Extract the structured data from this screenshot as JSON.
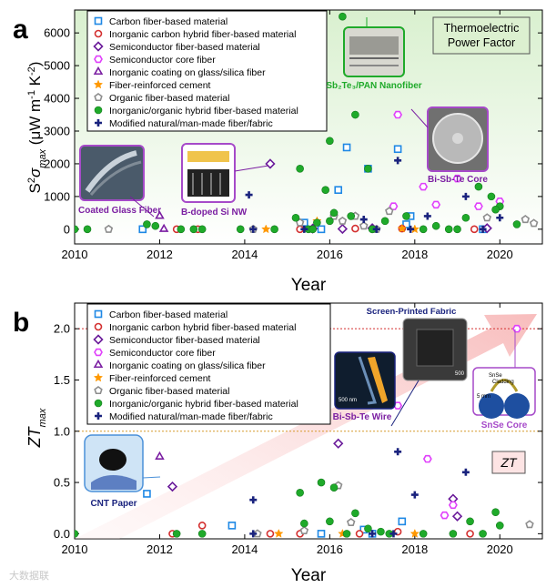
{
  "chart_data": [
    {
      "panel_label": "a",
      "type": "scatter",
      "title": "Thermoelectric Power Factor",
      "title_lines": [
        "Thermoelectric",
        "Power Factor"
      ],
      "xlabel": "Year",
      "ylabel": "S²σ_max (μW m⁻¹ K⁻²)",
      "ylabel_parts": {
        "s": "S",
        "sup": "2",
        "sigma": "σ",
        "sub": "max",
        "units": " (μW m",
        "u1": "-1",
        "mid": " K",
        "u2": "-2",
        "close": ")"
      },
      "xlim": [
        2010,
        2021
      ],
      "ylim": [
        -450,
        6700
      ],
      "xticks": [
        2010,
        2012,
        2014,
        2016,
        2018,
        2020
      ],
      "xtick_labels": [
        "2010",
        "2012",
        "2014",
        "2016",
        "2018",
        "2020"
      ],
      "yticks": [
        0,
        1000,
        2000,
        3000,
        4000,
        5000,
        6000
      ],
      "ytick_labels": [
        "0",
        "1000",
        "2000",
        "3000",
        "4000",
        "5000",
        "6000"
      ],
      "annotations": [
        {
          "text": "Coated Glass Fiber",
          "x": 2012.0,
          "y": 400
        },
        {
          "text": "B-doped Si NW",
          "x": 2014.6,
          "y": 2000
        },
        {
          "text": "Sb₂Te₃/PAN Nanofiber",
          "x": 2016.0,
          "y": 6500
        },
        {
          "text": "Bi-Sb-Te Core",
          "x": 2017.6,
          "y": 3500
        }
      ],
      "series": [
        {
          "name": "Carbon fiber-based material",
          "x": [
            2011.6,
            2016.4,
            2016.9,
            2017.6,
            2015.4,
            2015.8,
            2016.2,
            2017.8,
            2019.6,
            2017.9
          ],
          "y": [
            0,
            2500,
            1850,
            2450,
            200,
            0,
            1200,
            150,
            0,
            400
          ]
        },
        {
          "name": "Inorganic carbon hybrid fiber-based material",
          "x": [
            2012.4,
            2012.9,
            2015.3,
            2016.6,
            2017.7,
            2019.4
          ],
          "y": [
            0,
            0,
            0,
            20,
            20,
            0
          ]
        },
        {
          "name": "Semiconductor fiber-based material",
          "x": [
            2014.6,
            2015.6,
            2017.0,
            2019.7,
            2016.3
          ],
          "y": [
            2000,
            20,
            30,
            30,
            10
          ]
        },
        {
          "name": "Semiconductor core fiber",
          "x": [
            2017.6,
            2017.5,
            2018.2,
            2018.5,
            2019.0,
            2019.5,
            2020.0
          ],
          "y": [
            3500,
            700,
            1300,
            750,
            1550,
            700,
            850
          ]
        },
        {
          "name": "Inorganic coating on glass/silica fiber",
          "x": [
            2012.0,
            2012.1
          ],
          "y": [
            400,
            0
          ]
        },
        {
          "name": "Fiber-reinforced cement",
          "x": [
            2014.5,
            2015.7,
            2017.7,
            2018.0
          ],
          "y": [
            0,
            250,
            20,
            0
          ]
        },
        {
          "name": "Organic fiber-based material",
          "x": [
            2010.8,
            2014.2,
            2015.3,
            2016.1,
            2016.6,
            2016.3,
            2016.8,
            2017.1,
            2017.4,
            2019.7,
            2020.6,
            2020.8
          ],
          "y": [
            0,
            0,
            200,
            400,
            400,
            250,
            100,
            0,
            550,
            350,
            300,
            180
          ]
        },
        {
          "name": "Inorganic/organic hybrid fiber-based material",
          "x": [
            2010.0,
            2010.3,
            2011.7,
            2011.9,
            2012.5,
            2012.8,
            2013.0,
            2013.9,
            2014.7,
            2015.2,
            2015.3,
            2015.5,
            2015.7,
            2015.9,
            2016.0,
            2016.1,
            2016.3,
            2016.5,
            2016.6,
            2016.9,
            2017.3,
            2017.8,
            2018.2,
            2018.5,
            2019.0,
            2019.5,
            2019.8,
            2020.0,
            2020.4,
            2015.6,
            2016.0,
            2017.0,
            2018.8,
            2019.2,
            2019.9
          ],
          "y": [
            0,
            0,
            150,
            100,
            0,
            0,
            0,
            0,
            0,
            350,
            1850,
            0,
            200,
            1200,
            2700,
            500,
            6500,
            400,
            3500,
            1850,
            250,
            400,
            0,
            100,
            0,
            1300,
            1000,
            700,
            150,
            0,
            250,
            0,
            0,
            350,
            600
          ]
        },
        {
          "name": "Modified natural/man-made fiber/fabric",
          "x": [
            2014.1,
            2014.2,
            2015.4,
            2016.8,
            2017.1,
            2017.6,
            2017.9,
            2018.3,
            2019.2,
            2020.0,
            2019.6
          ],
          "y": [
            1050,
            0,
            0,
            300,
            0,
            2100,
            0,
            400,
            1000,
            350,
            0
          ]
        }
      ]
    },
    {
      "panel_label": "b",
      "type": "scatter",
      "title": "ZT",
      "xlabel": "Year",
      "ylabel": "ZT_max",
      "ylabel_parts": {
        "main": "ZT",
        "sub": "max"
      },
      "xlim": [
        2010,
        2021
      ],
      "ylim": [
        -0.05,
        2.25
      ],
      "xticks": [
        2010,
        2012,
        2014,
        2016,
        2018,
        2020
      ],
      "xtick_labels": [
        "2010",
        "2012",
        "2014",
        "2016",
        "2018",
        "2020"
      ],
      "yticks": [
        0.0,
        0.5,
        1.0,
        1.5,
        2.0
      ],
      "ytick_labels": [
        "0.0",
        "0.5",
        "1.0",
        "1.5",
        "2.0"
      ],
      "reference_lines": [
        2.0,
        1.0
      ],
      "annotations": [
        {
          "text": "CNT Paper",
          "x": 2011.7,
          "y": 0.39
        },
        {
          "text": "Screen-Printed Fabric",
          "x": 2017.6,
          "y": 0.8
        },
        {
          "text": "Bi-Sb-Te Wire",
          "x": 2016.3,
          "y": 0.9
        },
        {
          "text": "SnSe Core",
          "x": 2020.4,
          "y": 2.0
        }
      ],
      "photo_labels": {
        "scale_500nm": "500 nm",
        "scale_5mm": "5 mm",
        "snse_core_label": "SnSe",
        "snse_cladding_label": "Cladding",
        "screen_scale": "500"
      },
      "series": [
        {
          "name": "Carbon fiber-based material",
          "x": [
            2011.7,
            2013.7,
            2017.7,
            2017.0,
            2016.8,
            2015.8
          ],
          "y": [
            0.39,
            0.08,
            0.12,
            0.0,
            0.04,
            0.0
          ]
        },
        {
          "name": "Inorganic carbon hybrid fiber-based material",
          "x": [
            2012.3,
            2013.0,
            2014.6,
            2015.3,
            2016.7,
            2017.6,
            2019.3
          ],
          "y": [
            0.0,
            0.08,
            0.0,
            0.0,
            0.0,
            0.02,
            0.0
          ]
        },
        {
          "name": "Semiconductor fiber-based material",
          "x": [
            2012.3,
            2016.2,
            2018.9,
            2019.0
          ],
          "y": [
            0.46,
            0.88,
            0.34,
            0.17
          ]
        },
        {
          "name": "Semiconductor core fiber",
          "x": [
            2020.4,
            2017.6,
            2018.3,
            2018.7,
            2018.9
          ],
          "y": [
            2.0,
            1.25,
            0.73,
            0.18,
            0.28
          ]
        },
        {
          "name": "Inorganic coating on glass/silica fiber",
          "x": [
            2012.0
          ],
          "y": [
            0.75
          ]
        },
        {
          "name": "Fiber-reinforced cement",
          "x": [
            2014.8,
            2016.3,
            2018.0
          ],
          "y": [
            0.0,
            0.0,
            0.0
          ]
        },
        {
          "name": "Organic fiber-based material",
          "x": [
            2014.3,
            2016.2,
            2016.5,
            2020.7,
            2015.4
          ],
          "y": [
            0.0,
            0.47,
            0.11,
            0.09,
            0.03
          ]
        },
        {
          "name": "Inorganic/organic hybrid fiber-based material",
          "x": [
            2010.0,
            2012.4,
            2013.0,
            2015.3,
            2015.8,
            2016.0,
            2016.1,
            2016.6,
            2016.9,
            2017.2,
            2019.3,
            2019.9,
            2020.0,
            2015.4,
            2016.4,
            2017.4,
            2018.2,
            2018.9,
            2019.6
          ],
          "y": [
            0.0,
            0.0,
            0.0,
            0.4,
            0.5,
            0.12,
            0.45,
            0.2,
            0.05,
            0.02,
            0.12,
            0.21,
            0.08,
            0.1,
            0.0,
            0.0,
            0.0,
            0.0,
            0.0
          ]
        },
        {
          "name": "Modified natural/man-made fiber/fabric",
          "x": [
            2014.2,
            2014.2,
            2017.6,
            2017.5,
            2018.0,
            2019.2,
            2017.0
          ],
          "y": [
            0.33,
            0.0,
            0.8,
            0.0,
            0.38,
            0.6,
            0.0
          ]
        }
      ]
    }
  ],
  "legend_entries": [
    "Carbon fiber-based material",
    "Inorganic carbon hybrid fiber-based material",
    "Semiconductor fiber-based material",
    "Semiconductor core fiber",
    "Inorganic coating on glass/silica fiber",
    "Fiber-reinforced cement",
    "Organic fiber-based material",
    "Inorganic/organic hybrid fiber-based material",
    "Modified natural/man-made fiber/fabric"
  ],
  "series_style": [
    {
      "marker": "square",
      "color": "#1e88e5"
    },
    {
      "marker": "circle-open",
      "color": "#d32f2f"
    },
    {
      "marker": "diamond",
      "color": "#6a1b9a"
    },
    {
      "marker": "hexagon",
      "color": "#e040fb"
    },
    {
      "marker": "triangle",
      "color": "#7b1fa2"
    },
    {
      "marker": "star",
      "color": "#ff9800"
    },
    {
      "marker": "pentagon",
      "color": "#8d8d8d"
    },
    {
      "marker": "circle-filled",
      "color": "#1faa2a"
    },
    {
      "marker": "plus",
      "color": "#1a237e"
    }
  ],
  "colors": {
    "panel_a_bg": "#eef8ea",
    "annotation_purple": "#7b1fa2",
    "annotation_green": "#1faa2a",
    "zt_line_red": "#d32f2f",
    "zt_line_orange": "#d69a2b",
    "title_box": "#dcf0d0",
    "zt_box": "#fde4e4"
  },
  "watermark": "大数据联"
}
